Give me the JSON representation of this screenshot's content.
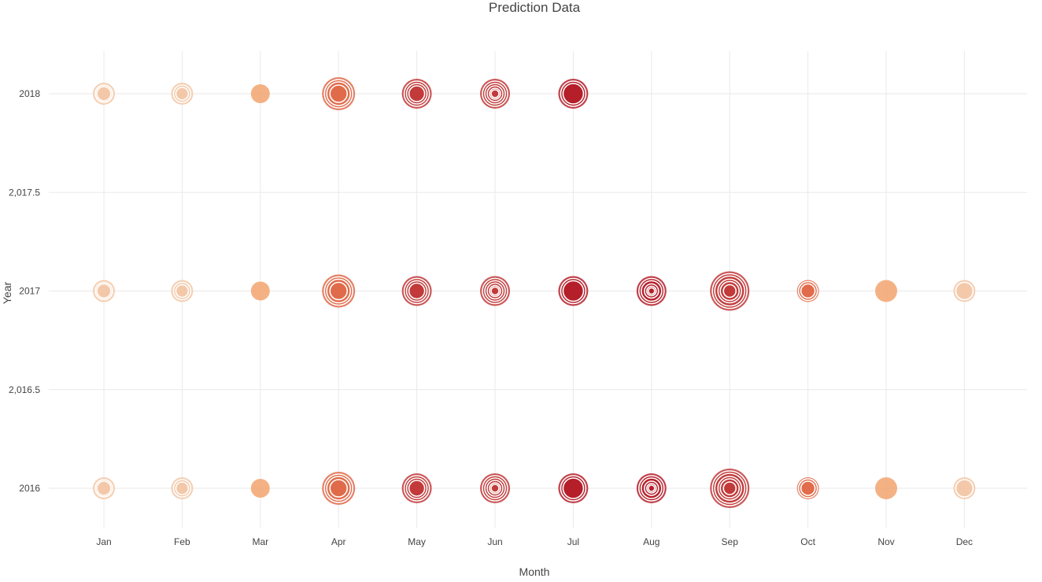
{
  "chart_data": {
    "type": "scatter",
    "title": "Prediction Data",
    "xlabel": "Month",
    "ylabel": "Year",
    "categories": [
      "Jan",
      "Feb",
      "Mar",
      "Apr",
      "May",
      "Jun",
      "Jul",
      "Aug",
      "Sep",
      "Oct",
      "Nov",
      "Dec"
    ],
    "y_ticks": [
      "2016",
      "2,016.5",
      "2017",
      "2,017.5",
      "2018"
    ],
    "y_tick_values": [
      2016,
      2016.5,
      2017,
      2017.5,
      2018
    ],
    "ylim": [
      2015.8,
      2018.22
    ],
    "grid": true,
    "colors": {
      "pale": "#f3c8a8",
      "light": "#f2a56f",
      "medium": "#e06b4b",
      "dark": "#c23b3b",
      "deep": "#b51f2a"
    },
    "bubbles": [
      {
        "month": "Jan",
        "year": 2018,
        "color": "pale",
        "radii": [
          14,
          11,
          9
        ]
      },
      {
        "month": "Feb",
        "year": 2018,
        "color": "pale",
        "radii": [
          14,
          11,
          8
        ]
      },
      {
        "month": "Mar",
        "year": 2018,
        "color": "light",
        "radii": [
          12
        ]
      },
      {
        "month": "Apr",
        "year": 2018,
        "color": "medium",
        "radii": [
          21,
          18,
          15,
          11
        ]
      },
      {
        "month": "May",
        "year": 2018,
        "color": "dark",
        "radii": [
          19,
          16,
          13,
          10
        ]
      },
      {
        "month": "Jun",
        "year": 2018,
        "color": "dark",
        "radii": [
          19,
          16,
          13,
          10,
          7,
          5
        ]
      },
      {
        "month": "Jul",
        "year": 2018,
        "color": "deep",
        "radii": [
          19,
          16,
          13
        ]
      },
      {
        "month": "Jan",
        "year": 2017,
        "color": "pale",
        "radii": [
          14,
          11,
          9
        ]
      },
      {
        "month": "Feb",
        "year": 2017,
        "color": "pale",
        "radii": [
          14,
          11,
          8
        ]
      },
      {
        "month": "Mar",
        "year": 2017,
        "color": "light",
        "radii": [
          12
        ]
      },
      {
        "month": "Apr",
        "year": 2017,
        "color": "medium",
        "radii": [
          21,
          18,
          15,
          11
        ]
      },
      {
        "month": "May",
        "year": 2017,
        "color": "dark",
        "radii": [
          19,
          16,
          13,
          10
        ]
      },
      {
        "month": "Jun",
        "year": 2017,
        "color": "dark",
        "radii": [
          19,
          16,
          13,
          10,
          7,
          5
        ]
      },
      {
        "month": "Jul",
        "year": 2017,
        "color": "deep",
        "radii": [
          19,
          16,
          13
        ]
      },
      {
        "month": "Aug",
        "year": 2017,
        "color": "deep",
        "radii": [
          19,
          16,
          13,
          9,
          6,
          4
        ]
      },
      {
        "month": "Sep",
        "year": 2017,
        "color": "dark",
        "radii": [
          25,
          22,
          19,
          15,
          12,
          8
        ]
      },
      {
        "month": "Oct",
        "year": 2017,
        "color": "medium",
        "radii": [
          14,
          12,
          9
        ]
      },
      {
        "month": "Nov",
        "year": 2017,
        "color": "light",
        "radii": [
          14
        ]
      },
      {
        "month": "Dec",
        "year": 2017,
        "color": "pale",
        "radii": [
          14,
          11
        ]
      },
      {
        "month": "Jan",
        "year": 2016,
        "color": "pale",
        "radii": [
          14,
          11,
          9
        ]
      },
      {
        "month": "Feb",
        "year": 2016,
        "color": "pale",
        "radii": [
          14,
          11,
          8
        ]
      },
      {
        "month": "Mar",
        "year": 2016,
        "color": "light",
        "radii": [
          12
        ]
      },
      {
        "month": "Apr",
        "year": 2016,
        "color": "medium",
        "radii": [
          21,
          18,
          15,
          11
        ]
      },
      {
        "month": "May",
        "year": 2016,
        "color": "dark",
        "radii": [
          19,
          16,
          13,
          10
        ]
      },
      {
        "month": "Jun",
        "year": 2016,
        "color": "dark",
        "radii": [
          19,
          16,
          13,
          10,
          7,
          5
        ]
      },
      {
        "month": "Jul",
        "year": 2016,
        "color": "deep",
        "radii": [
          19,
          16,
          13
        ]
      },
      {
        "month": "Aug",
        "year": 2016,
        "color": "deep",
        "radii": [
          19,
          16,
          13,
          9,
          6,
          4
        ]
      },
      {
        "month": "Sep",
        "year": 2016,
        "color": "dark",
        "radii": [
          25,
          22,
          19,
          15,
          12,
          8
        ]
      },
      {
        "month": "Oct",
        "year": 2016,
        "color": "medium",
        "radii": [
          14,
          12,
          9
        ]
      },
      {
        "month": "Nov",
        "year": 2016,
        "color": "light",
        "radii": [
          14
        ]
      },
      {
        "month": "Dec",
        "year": 2016,
        "color": "pale",
        "radii": [
          14,
          11
        ]
      }
    ]
  }
}
